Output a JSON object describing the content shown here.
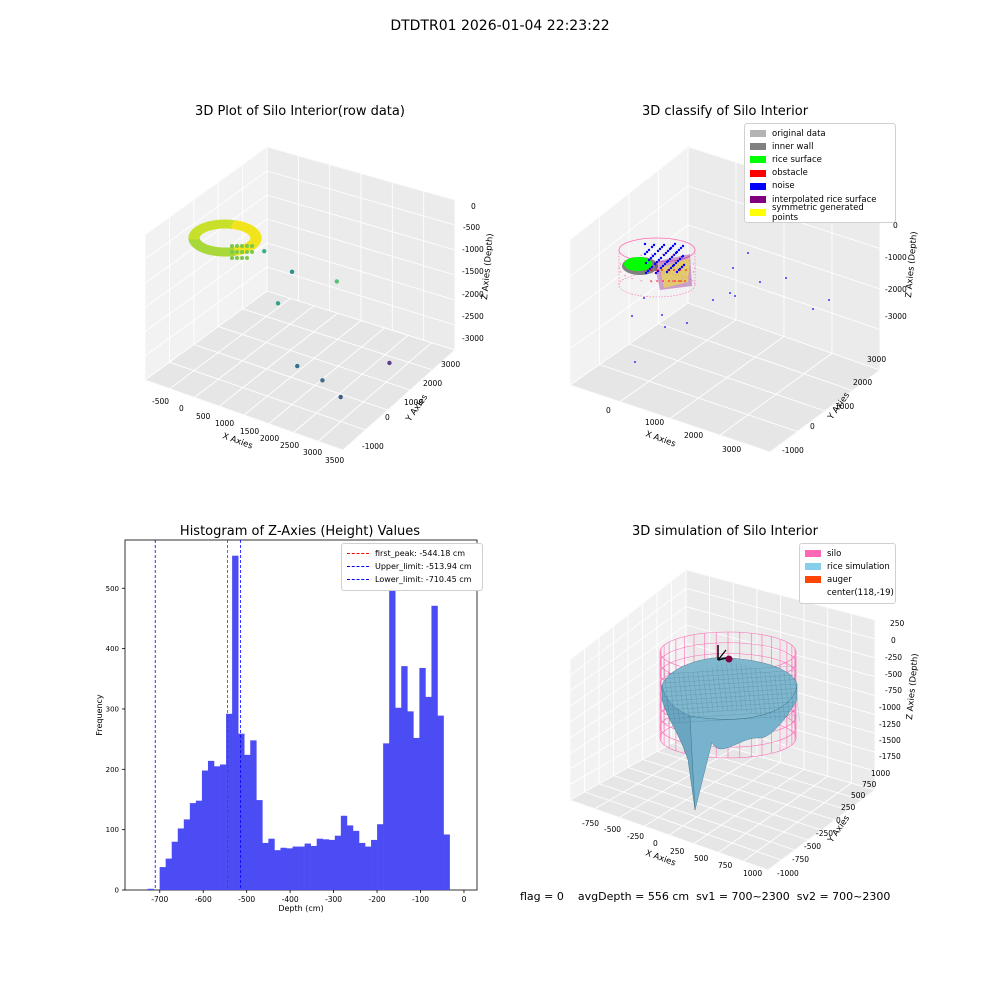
{
  "figure_title": "DTDTR01 2026-01-04 22:23:22",
  "footer": {
    "flag": "flag = 0",
    "avg_depth": "avgDepth = 556 cm",
    "sv1": "sv1 = 700~2300",
    "sv2": "sv2 = 700~2300"
  },
  "chart_data": [
    {
      "type": "scatter3d",
      "title": "3D Plot of Silo Interior(row data)",
      "xlabel": "X Axies",
      "ylabel": "Y Axies",
      "zlabel": "Z Axies (Depth)",
      "x_ticks": [
        "-500",
        "0",
        "500",
        "1000",
        "1500",
        "2000",
        "2500",
        "3000",
        "3500"
      ],
      "y_ticks": [
        "-1000",
        "0",
        "1000",
        "2000",
        "3000"
      ],
      "z_ticks": [
        "0",
        "-500",
        "-1000",
        "-1500",
        "-2000",
        "-2500",
        "-3000"
      ],
      "outlier_points": [
        {
          "x": 300,
          "y": 1500,
          "z": -1100
        },
        {
          "x": 800,
          "y": 1700,
          "z": -1500
        },
        {
          "x": 900,
          "y": 1000,
          "z": -1900
        },
        {
          "x": 1800,
          "y": 200,
          "z": -2700
        },
        {
          "x": 2300,
          "y": 300,
          "z": -2900
        },
        {
          "x": 3000,
          "y": -200,
          "z": -2800
        },
        {
          "x": 3200,
          "y": 1300,
          "z": -2600
        },
        {
          "x": 1500,
          "y": 2200,
          "z": -1700
        }
      ]
    },
    {
      "type": "scatter3d",
      "title": "3D classify of Silo Interior",
      "xlabel": "X Axies",
      "ylabel": "Y Axies",
      "zlabel": "Z Axies (Depth)",
      "x_ticks": [
        "0",
        "1000",
        "2000",
        "3000"
      ],
      "y_ticks": [
        "-1000",
        "0",
        "1000",
        "2000",
        "3000"
      ],
      "z_ticks": [
        "0",
        "-1000",
        "-2000",
        "-3000"
      ],
      "legend": [
        {
          "label": "original data",
          "color": "#b3b3b3"
        },
        {
          "label": "inner wall",
          "color": "#808080"
        },
        {
          "label": "rice surface",
          "color": "#00ff00"
        },
        {
          "label": "obstacle",
          "color": "#ff0000"
        },
        {
          "label": "noise",
          "color": "#0000ff"
        },
        {
          "label": "interpolated rice surface",
          "color": "#800080"
        },
        {
          "label": "symmetric generated points",
          "color": "#ffff00"
        }
      ]
    },
    {
      "type": "bar",
      "title": "Histogram of Z-Axies (Height) Values",
      "xlabel": "Depth (cm)",
      "ylabel": "Frequency",
      "xlim": [
        -780,
        30
      ],
      "ylim": [
        0,
        580
      ],
      "x_ticks": [
        -700,
        -600,
        -500,
        -400,
        -300,
        -200,
        -100,
        0
      ],
      "y_ticks": [
        0,
        100,
        200,
        300,
        400,
        500
      ],
      "bin_start": -742,
      "bin_width": 13.9,
      "values": [
        0,
        2,
        0,
        38,
        52,
        80,
        102,
        117,
        144,
        148,
        198,
        214,
        205,
        208,
        292,
        554,
        259,
        224,
        248,
        149,
        78,
        85,
        66,
        70,
        69,
        72,
        72,
        77,
        73,
        85,
        84,
        83,
        90,
        123,
        107,
        98,
        78,
        72,
        83,
        109,
        243,
        519,
        302,
        371,
        296,
        252,
        368,
        320,
        471,
        289,
        92
      ],
      "bar_color": "#4c4cf4",
      "lines": [
        {
          "label": "first_peak: -544.18 cm",
          "value": -544.18,
          "color": "#ff0000"
        },
        {
          "label": "Upper_limit: -513.94 cm",
          "value": -513.94,
          "color": "#0000ff"
        },
        {
          "label": "Lower_limit: -710.45 cm",
          "value": -710.45,
          "color": "#0000ff"
        }
      ]
    },
    {
      "type": "surface3d",
      "title": "3D simulation of Silo Interior",
      "xlabel": "X Axies",
      "ylabel": "Y Axies",
      "zlabel": "Z Axies (Depth)",
      "x_ticks": [
        "-750",
        "-500",
        "-250",
        "0",
        "250",
        "500",
        "750",
        "1000"
      ],
      "y_ticks": [
        "-1000",
        "-750",
        "-500",
        "-250",
        "0",
        "250",
        "500",
        "750",
        "1000"
      ],
      "z_ticks": [
        "250",
        "0",
        "-250",
        "-500",
        "-750",
        "-1000",
        "-1250",
        "-1500",
        "-1750"
      ],
      "legend": [
        {
          "label": "silo",
          "color": "#ff69b4"
        },
        {
          "label": "rice simulation",
          "color": "#87ceeb"
        },
        {
          "label": "auger",
          "color": "#ff4500"
        },
        {
          "label": "center(118,-19)",
          "color": ""
        }
      ]
    }
  ]
}
